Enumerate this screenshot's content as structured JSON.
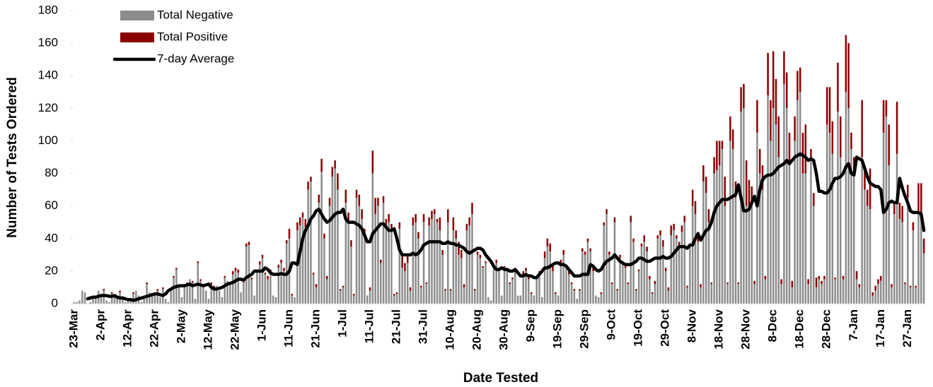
{
  "chart_data": {
    "type": "bar",
    "stacked": true,
    "x_label": "Date Tested",
    "y_label": "Number of Tests Ordered",
    "ylim": [
      0,
      180
    ],
    "yticks": [
      0,
      20,
      40,
      60,
      80,
      100,
      120,
      140,
      160,
      180
    ],
    "legend": "top-left",
    "categories": [
      "23-Mar",
      null,
      null,
      null,
      null,
      null,
      null,
      null,
      null,
      null,
      "2-Apr",
      null,
      null,
      null,
      null,
      null,
      null,
      null,
      null,
      null,
      "12-Apr",
      null,
      null,
      null,
      null,
      null,
      null,
      null,
      null,
      null,
      "22-Apr",
      null,
      null,
      null,
      null,
      null,
      null,
      null,
      null,
      null,
      "2-May",
      null,
      null,
      null,
      null,
      null,
      null,
      null,
      null,
      null,
      "12-May",
      null,
      null,
      null,
      null,
      null,
      null,
      null,
      null,
      null,
      "22-May",
      null,
      null,
      null,
      null,
      null,
      null,
      null,
      null,
      null,
      "1-Jun",
      null,
      null,
      null,
      null,
      null,
      null,
      null,
      null,
      null,
      "11-Jun",
      null,
      null,
      null,
      null,
      null,
      null,
      null,
      null,
      null,
      "21-Jun",
      null,
      null,
      null,
      null,
      null,
      null,
      null,
      null,
      null,
      "1-Jul",
      null,
      null,
      null,
      null,
      null,
      null,
      null,
      null,
      null,
      "11-Jul",
      null,
      null,
      null,
      null,
      null,
      null,
      null,
      null,
      null,
      "21-Jul",
      null,
      null,
      null,
      null,
      null,
      null,
      null,
      null,
      null,
      "31-Jul",
      null,
      null,
      null,
      null,
      null,
      null,
      null,
      null,
      null,
      "10-Aug",
      null,
      null,
      null,
      null,
      null,
      null,
      null,
      null,
      null,
      "20-Aug",
      null,
      null,
      null,
      null,
      null,
      null,
      null,
      null,
      null,
      "30-Aug",
      null,
      null,
      null,
      null,
      null,
      null,
      null,
      null,
      null,
      "9-Sep",
      null,
      null,
      null,
      null,
      null,
      null,
      null,
      null,
      null,
      "19-Sep",
      null,
      null,
      null,
      null,
      null,
      null,
      null,
      null,
      null,
      "29-Sep",
      null,
      null,
      null,
      null,
      null,
      null,
      null,
      null,
      null,
      "9-Oct",
      null,
      null,
      null,
      null,
      null,
      null,
      null,
      null,
      null,
      "19-Oct",
      null,
      null,
      null,
      null,
      null,
      null,
      null,
      null,
      null,
      "29-Oct",
      null,
      null,
      null,
      null,
      null,
      null,
      null,
      null,
      null,
      "8-Nov",
      null,
      null,
      null,
      null,
      null,
      null,
      null,
      null,
      null,
      "18-Nov",
      null,
      null,
      null,
      null,
      null,
      null,
      null,
      null,
      null,
      "28-Nov",
      null,
      null,
      null,
      null,
      null,
      null,
      null,
      null,
      null,
      "8-Dec",
      null,
      null,
      null,
      null,
      null,
      null,
      null,
      null,
      null,
      "18-Dec",
      null,
      null,
      null,
      null,
      null,
      null,
      null,
      null,
      null,
      "28-Dec",
      null,
      null,
      null,
      null,
      null,
      null,
      null,
      null,
      null,
      "7-Jan",
      null,
      null,
      null,
      null,
      null,
      null,
      null,
      null,
      null,
      "17-Jan",
      null,
      null,
      null,
      null,
      null,
      null,
      null,
      null,
      null,
      "27-Jan",
      null,
      null,
      null,
      null,
      null,
      null
    ],
    "series": [
      {
        "name": "Total Negative",
        "color": "#8c8c8c",
        "values": [
          1,
          1,
          2,
          8,
          7,
          0,
          1,
          3,
          4,
          8,
          6,
          8,
          2,
          1,
          6,
          5,
          4,
          7,
          3,
          1,
          2,
          3,
          6,
          8,
          5,
          1,
          3,
          12,
          7,
          5,
          6,
          8,
          4,
          9,
          3,
          1,
          8,
          16,
          21,
          11,
          4,
          10,
          12,
          15,
          13,
          3,
          25,
          14,
          11,
          8,
          3,
          12,
          10,
          11,
          8,
          4,
          16,
          14,
          12,
          18,
          20,
          19,
          7,
          13,
          35,
          36,
          15,
          5,
          19,
          24,
          28,
          18,
          15,
          20,
          5,
          4,
          22,
          25,
          20,
          37,
          40,
          5,
          4,
          45,
          48,
          53,
          47,
          70,
          75,
          18,
          10,
          62,
          81,
          40,
          15,
          60,
          78,
          83,
          70,
          8,
          10,
          62,
          50,
          35,
          5,
          65,
          60,
          52,
          40,
          5,
          8,
          80,
          55,
          60,
          25,
          62,
          48,
          50,
          45,
          5,
          6,
          46,
          22,
          20,
          25,
          8,
          48,
          50,
          40,
          10,
          50,
          12,
          48,
          52,
          55,
          50,
          45,
          30,
          8,
          50,
          8,
          45,
          40,
          30,
          28,
          10,
          45,
          48,
          55,
          8,
          30,
          28,
          22,
          25,
          4,
          2,
          22,
          25,
          20,
          5,
          22,
          20,
          12,
          15,
          20,
          5,
          5,
          18,
          20,
          15,
          6,
          5,
          15,
          18,
          4,
          28,
          35,
          32,
          20,
          6,
          5,
          25,
          30,
          22,
          18,
          12,
          8,
          3,
          8,
          32,
          30,
          38,
          32,
          20,
          5,
          4,
          6,
          48,
          55,
          30,
          12,
          50,
          8,
          28,
          24,
          22,
          12,
          50,
          38,
          8,
          20,
          35,
          38,
          32,
          15,
          6,
          12,
          40,
          42,
          35,
          20,
          8,
          42,
          45,
          40,
          35,
          44,
          50,
          10,
          35,
          60,
          55,
          38,
          10,
          75,
          68,
          50,
          12,
          80,
          82,
          85,
          95,
          60,
          12,
          100,
          95,
          65,
          12,
          118,
          120,
          60,
          58,
          60,
          12,
          105,
          80,
          70,
          15,
          128,
          100,
          120,
          110,
          90,
          12,
          135,
          120,
          85,
          10,
          100,
          125,
          130,
          80,
          80,
          12,
          90,
          60,
          10,
          15,
          12,
          15,
          110,
          105,
          92,
          15,
          118,
          90,
          15,
          130,
          120,
          95,
          80,
          15,
          10,
          90,
          70,
          60,
          58,
          5,
          8,
          12,
          14,
          105,
          115,
          85,
          10,
          55,
          92,
          52,
          50,
          12,
          65,
          10,
          45,
          10,
          55,
          52,
          31
        ]
      },
      {
        "name": "Total Positive",
        "color": "#8b0000",
        "values": [
          0,
          0,
          0,
          0,
          0,
          0,
          0,
          0,
          0,
          0,
          0,
          1,
          0,
          0,
          1,
          0,
          0,
          1,
          0,
          0,
          0,
          0,
          1,
          0,
          0,
          0,
          0,
          1,
          0,
          0,
          0,
          1,
          0,
          1,
          0,
          0,
          1,
          1,
          1,
          0,
          0,
          1,
          1,
          0,
          1,
          0,
          1,
          1,
          0,
          0,
          0,
          1,
          1,
          0,
          0,
          0,
          1,
          0,
          0,
          2,
          2,
          2,
          0,
          1,
          2,
          2,
          1,
          0,
          1,
          2,
          2,
          1,
          2,
          1,
          0,
          0,
          2,
          2,
          2,
          2,
          6,
          1,
          0,
          5,
          5,
          3,
          5,
          5,
          3,
          1,
          2,
          5,
          8,
          3,
          2,
          5,
          6,
          5,
          10,
          1,
          1,
          8,
          6,
          4,
          1,
          5,
          7,
          6,
          6,
          0,
          2,
          14,
          10,
          5,
          2,
          4,
          4,
          5,
          4,
          1,
          1,
          4,
          8,
          5,
          4,
          2,
          5,
          5,
          4,
          1,
          5,
          1,
          5,
          5,
          3,
          2,
          8,
          3,
          1,
          8,
          1,
          8,
          5,
          8,
          5,
          2,
          4,
          5,
          7,
          1,
          2,
          2,
          1,
          1,
          0,
          0,
          2,
          2,
          2,
          0,
          1,
          2,
          1,
          1,
          1,
          0,
          0,
          2,
          2,
          2,
          1,
          0,
          2,
          2,
          0,
          4,
          5,
          5,
          3,
          1,
          0,
          2,
          3,
          2,
          2,
          1,
          1,
          0,
          1,
          2,
          2,
          2,
          2,
          2,
          0,
          0,
          1,
          2,
          3,
          2,
          1,
          3,
          1,
          2,
          2,
          2,
          1,
          4,
          2,
          1,
          1,
          2,
          4,
          3,
          2,
          1,
          2,
          2,
          3,
          4,
          2,
          2,
          6,
          4,
          2,
          3,
          4,
          4,
          1,
          2,
          10,
          8,
          6,
          2,
          10,
          10,
          8,
          1,
          10,
          18,
          15,
          5,
          18,
          1,
          15,
          12,
          10,
          1,
          15,
          15,
          28,
          18,
          12,
          2,
          20,
          15,
          15,
          2,
          26,
          25,
          35,
          28,
          25,
          3,
          20,
          22,
          20,
          4,
          15,
          18,
          15,
          25,
          30,
          3,
          5,
          8,
          6,
          2,
          2,
          2,
          23,
          28,
          20,
          1,
          30,
          25,
          2,
          35,
          40,
          10,
          10,
          5,
          2,
          35,
          12,
          10,
          25,
          2,
          3,
          3,
          3,
          20,
          10,
          25,
          2,
          6,
          32,
          10,
          10,
          1,
          8,
          1,
          5,
          1,
          19,
          22,
          9
        ]
      },
      {
        "name": "7-day Average",
        "color": "#000000",
        "type": "line",
        "values": [
          null,
          null,
          null,
          null,
          null,
          3,
          3.5,
          4,
          4,
          4.5,
          5,
          5,
          5,
          4.5,
          4.5,
          5,
          4,
          3.5,
          3.5,
          3,
          2.5,
          2.5,
          2,
          2.5,
          3,
          3.5,
          4,
          4.5,
          5,
          5.5,
          6,
          6,
          5.5,
          5,
          6,
          8,
          9,
          10,
          10.5,
          11,
          11,
          11,
          11.5,
          12,
          11,
          11.5,
          12,
          11.5,
          11,
          11.5,
          12,
          10,
          9,
          9,
          9.5,
          10,
          11,
          12,
          12.5,
          13,
          14,
          15,
          15,
          14.5,
          16,
          17,
          18,
          20,
          20,
          20,
          20,
          22,
          21,
          19,
          18,
          18,
          18,
          18.5,
          18,
          18,
          20,
          25,
          25,
          24,
          32,
          40,
          45,
          48,
          52,
          54,
          57,
          58,
          55,
          52,
          50,
          51,
          53,
          55,
          56,
          56,
          58,
          52,
          50,
          50,
          50,
          49,
          48,
          46,
          42,
          38,
          38,
          43,
          45,
          47,
          49,
          49,
          47,
          45,
          45,
          46,
          40,
          33,
          30,
          30,
          30,
          30,
          31,
          30,
          31,
          33,
          36,
          37,
          38,
          38,
          38,
          38,
          38,
          37,
          37,
          38,
          37,
          37,
          36,
          36,
          35,
          34,
          32,
          31,
          32,
          33,
          34,
          34,
          33,
          30,
          28,
          26,
          23,
          21,
          21,
          22,
          21,
          21,
          20,
          20,
          21,
          19,
          17,
          17,
          18,
          17,
          17,
          16,
          16,
          18,
          20,
          22,
          22,
          23,
          24,
          25,
          25,
          24,
          24,
          23,
          21,
          19,
          17,
          17,
          17,
          18,
          18,
          18,
          24,
          23,
          21,
          20,
          21,
          24,
          26,
          27,
          28,
          30,
          28,
          26,
          25,
          24,
          24,
          24,
          25,
          26,
          28,
          28,
          27,
          26,
          26,
          27,
          28,
          28,
          28,
          29,
          28,
          28,
          29,
          31,
          33,
          35,
          35,
          35,
          34,
          36,
          36,
          40,
          43,
          39,
          42,
          45,
          46,
          50,
          56,
          60,
          62,
          64,
          64,
          64,
          65,
          66,
          67,
          73,
          65,
          57,
          57,
          58,
          62,
          66,
          60,
          70,
          76,
          78,
          79,
          79,
          80,
          82,
          84,
          85,
          86,
          88,
          86,
          88,
          90,
          91,
          92,
          91,
          90,
          88,
          89,
          88,
          80,
          69,
          69,
          68,
          68,
          70,
          74,
          77,
          77,
          78,
          80,
          84,
          86,
          80,
          79,
          90,
          89,
          88,
          83,
          78,
          74,
          73,
          72,
          72,
          70,
          56,
          58,
          62,
          63,
          62,
          62,
          77,
          71,
          66,
          62,
          57,
          56,
          56,
          56,
          55,
          45
        ]
      }
    ]
  }
}
